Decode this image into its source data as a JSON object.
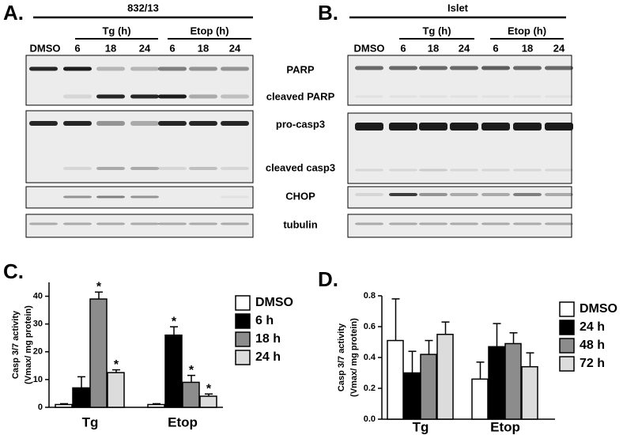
{
  "blots": [
    {
      "letter": "A.",
      "sample": "832/13",
      "control": "DMSO",
      "groups": [
        {
          "name": "Tg (h)",
          "times": [
            "6",
            "18",
            "24"
          ]
        },
        {
          "name": "Etop (h)",
          "times": [
            "6",
            "18",
            "24"
          ]
        }
      ]
    },
    {
      "letter": "B.",
      "sample": "Islet",
      "control": "DMSO",
      "groups": [
        {
          "name": "Tg (h)",
          "times": [
            "6",
            "18",
            "24"
          ]
        },
        {
          "name": "Etop (h)",
          "times": [
            "6",
            "18",
            "24"
          ]
        }
      ]
    }
  ],
  "blot_labels": [
    "PARP",
    "cleaved PARP",
    "pro-casp3",
    "cleaved casp3",
    "CHOP",
    "tubulin"
  ],
  "chart_data": [
    {
      "type": "bar",
      "letter": "C.",
      "ylabel": [
        "Casp 3/7 activity",
        "(Vmax/ mg protein)"
      ],
      "categories": [
        "Tg",
        "Etop"
      ],
      "series": [
        {
          "name": "DMSO",
          "color": "#ffffff",
          "values": [
            1,
            1
          ],
          "errors": [
            0.3,
            0.3
          ],
          "annotations": [
            null,
            null
          ]
        },
        {
          "name": "6 h",
          "color": "#000000",
          "values": [
            7,
            26
          ],
          "errors": [
            4,
            3
          ],
          "annotations": [
            null,
            "*"
          ]
        },
        {
          "name": "18 h",
          "color": "#8c8c8c",
          "values": [
            39,
            9
          ],
          "errors": [
            2.5,
            2.5
          ],
          "annotations": [
            "*",
            "*"
          ]
        },
        {
          "name": "24 h",
          "color": "#dcdcdc",
          "values": [
            12.5,
            4
          ],
          "errors": [
            1,
            0.8
          ],
          "annotations": [
            "*",
            "*"
          ]
        }
      ],
      "ylim": [
        0,
        45
      ],
      "yticks": [
        0,
        10,
        20,
        30,
        40
      ]
    },
    {
      "type": "bar",
      "letter": "D.",
      "ylabel": [
        "Casp 3/7 activity",
        "(Vmax/ mg protein)"
      ],
      "categories": [
        "Tg",
        "Etop"
      ],
      "series": [
        {
          "name": "DMSO",
          "color": "#ffffff",
          "values": [
            0.51,
            0.26
          ],
          "errors": [
            0.27,
            0.11
          ]
        },
        {
          "name": "24 h",
          "color": "#000000",
          "values": [
            0.3,
            0.47
          ],
          "errors": [
            0.14,
            0.15
          ]
        },
        {
          "name": "48 h",
          "color": "#8c8c8c",
          "values": [
            0.42,
            0.49
          ],
          "errors": [
            0.09,
            0.07
          ]
        },
        {
          "name": "72 h",
          "color": "#dcdcdc",
          "values": [
            0.55,
            0.34
          ],
          "errors": [
            0.08,
            0.09
          ]
        }
      ],
      "ylim": [
        0,
        0.8
      ],
      "yticks": [
        {
          "value": 0,
          "label": "0.0"
        },
        0.2,
        0.4,
        0.6,
        0.8
      ]
    }
  ]
}
